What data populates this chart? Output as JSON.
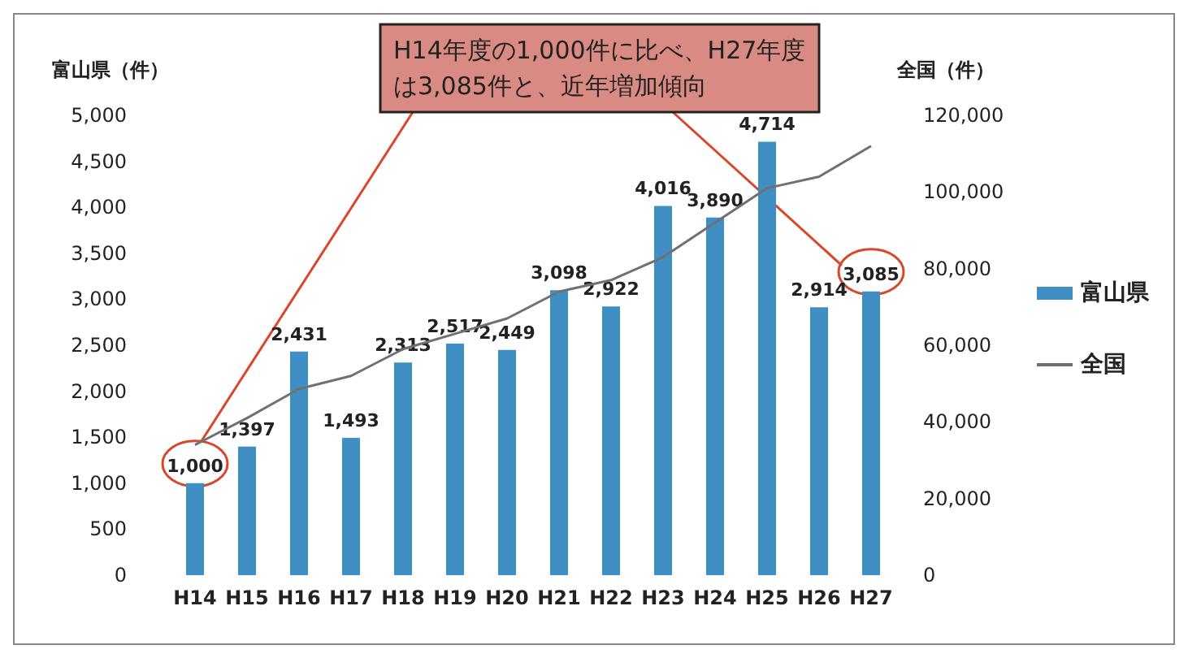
{
  "chart_data": {
    "type": "bar",
    "ylabel": "富山県（件）",
    "y2label": "全国（件）",
    "categories": [
      "H14",
      "H15",
      "H16",
      "H17",
      "H18",
      "H19",
      "H20",
      "H21",
      "H22",
      "H23",
      "H24",
      "H25",
      "H26",
      "H27"
    ],
    "series": [
      {
        "name": "富山県",
        "color": "#3f8fc4",
        "values": [
          1000,
          1397,
          2431,
          1493,
          2313,
          2517,
          2449,
          3098,
          2922,
          4016,
          3890,
          4714,
          2914,
          3085
        ],
        "value_labels": [
          "1,000",
          "1,397",
          "2,431",
          "1,493",
          "2,313",
          "2,517",
          "2,449",
          "3,098",
          "2,922",
          "4,016",
          "3,890",
          "4,714",
          "2,914",
          "3,085"
        ]
      },
      {
        "name": "全国",
        "type": "line",
        "axis": "y2",
        "color": "#707070",
        "values": [
          34000,
          41000,
          48600,
          52000,
          59000,
          63000,
          67000,
          74000,
          77000,
          83000,
          92000,
          101000,
          104000,
          112000
        ]
      }
    ],
    "ylim": [
      0,
      5000
    ],
    "yticks": [
      0,
      500,
      {
        "value": 1000,
        "label": "1,000"
      },
      {
        "value": 1500,
        "label": "1,500"
      },
      {
        "value": 2000,
        "label": "2,000"
      },
      {
        "value": 2500,
        "label": "2,500"
      },
      {
        "value": 3000,
        "label": "3,000"
      },
      {
        "value": 3500,
        "label": "3,500"
      },
      {
        "value": 4000,
        "label": "4,000"
      },
      {
        "value": 4500,
        "label": "4,500"
      },
      {
        "value": 5000,
        "label": "5,000"
      }
    ],
    "y2lim": [
      0,
      120000
    ],
    "y2ticks": [
      0,
      {
        "value": 20000,
        "label": "20,000"
      },
      {
        "value": 40000,
        "label": "40,000"
      },
      {
        "value": 60000,
        "label": "60,000"
      },
      {
        "value": 80000,
        "label": "80,000"
      },
      {
        "value": 100000,
        "label": "100,000"
      },
      {
        "value": 120000,
        "label": "120,000"
      }
    ],
    "grid": false,
    "legend": "right",
    "marker": "none",
    "annotations": [
      "H14年度の1,000件に比べ、H27年度は3,085件と、近年増加傾向"
    ]
  }
}
